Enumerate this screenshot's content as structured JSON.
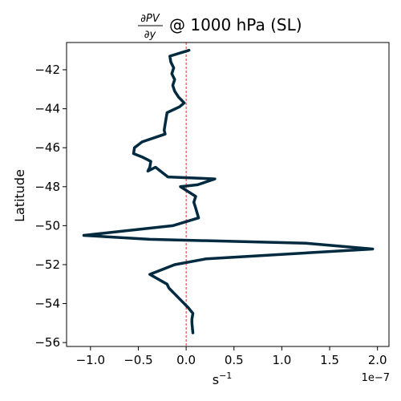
{
  "chart_data": {
    "type": "line",
    "title": {
      "numerator": "∂PV",
      "denominator": "∂y",
      "suffix": "@ 1000 hPa (SL)"
    },
    "xlabel": {
      "base": "s",
      "exponent": "−1"
    },
    "ylabel": "Latitude",
    "x_offset_label": "1e−7",
    "x_scale": 1e-07,
    "xlim": [
      -1.25,
      2.12
    ],
    "ylim": [
      -56.2,
      -40.6
    ],
    "x_ticks": [
      -1.0,
      -0.5,
      0.0,
      0.5,
      1.0,
      1.5,
      2.0
    ],
    "x_tick_labels": [
      "−1.0",
      "−0.5",
      "0.0",
      "0.5",
      "1.0",
      "1.5",
      "2.0"
    ],
    "y_ticks": [
      -42,
      -44,
      -46,
      -48,
      -50,
      -52,
      -54,
      -56
    ],
    "y_tick_labels": [
      "−42",
      "−44",
      "−46",
      "−48",
      "−50",
      "−52",
      "−54",
      "−56"
    ],
    "grid": false,
    "reference_line": {
      "x": 0,
      "style": "dashed",
      "color": "#cc0000"
    },
    "series": [
      {
        "color": "#002a40",
        "points": [
          [
            0.03,
            -41.0
          ],
          [
            -0.17,
            -41.3
          ],
          [
            -0.16,
            -41.6
          ],
          [
            -0.13,
            -41.9
          ],
          [
            -0.15,
            -42.2
          ],
          [
            -0.12,
            -42.5
          ],
          [
            -0.14,
            -42.8
          ],
          [
            -0.12,
            -43.1
          ],
          [
            -0.08,
            -43.4
          ],
          [
            -0.02,
            -43.7
          ],
          [
            -0.07,
            -43.9
          ],
          [
            -0.2,
            -44.2
          ],
          [
            -0.21,
            -44.5
          ],
          [
            -0.22,
            -44.8
          ],
          [
            -0.23,
            -45.1
          ],
          [
            -0.22,
            -45.3
          ],
          [
            -0.46,
            -45.7
          ],
          [
            -0.54,
            -46.0
          ],
          [
            -0.55,
            -46.3
          ],
          [
            -0.45,
            -46.5
          ],
          [
            -0.37,
            -46.7
          ],
          [
            -0.38,
            -47.0
          ],
          [
            -0.4,
            -47.2
          ],
          [
            -0.32,
            -47.0
          ],
          [
            -0.19,
            -47.5
          ],
          [
            0.3,
            -47.6
          ],
          [
            0.12,
            -47.9
          ],
          [
            -0.06,
            -48.0
          ],
          [
            0.1,
            -48.5
          ],
          [
            0.08,
            -48.8
          ],
          [
            0.1,
            -49.1
          ],
          [
            0.13,
            -49.6
          ],
          [
            -0.14,
            -50.0
          ],
          [
            -1.07,
            -50.5
          ],
          [
            -0.38,
            -50.7
          ],
          [
            1.25,
            -50.9
          ],
          [
            1.95,
            -51.2
          ],
          [
            0.21,
            -51.7
          ],
          [
            -0.12,
            -52.0
          ],
          [
            -0.38,
            -52.5
          ],
          [
            -0.2,
            -53.0
          ],
          [
            -0.18,
            -53.2
          ],
          [
            -0.08,
            -53.7
          ],
          [
            0.02,
            -54.2
          ],
          [
            0.07,
            -54.5
          ],
          [
            0.06,
            -54.8
          ],
          [
            0.06,
            -55.0
          ],
          [
            0.07,
            -55.5
          ]
        ]
      }
    ]
  }
}
